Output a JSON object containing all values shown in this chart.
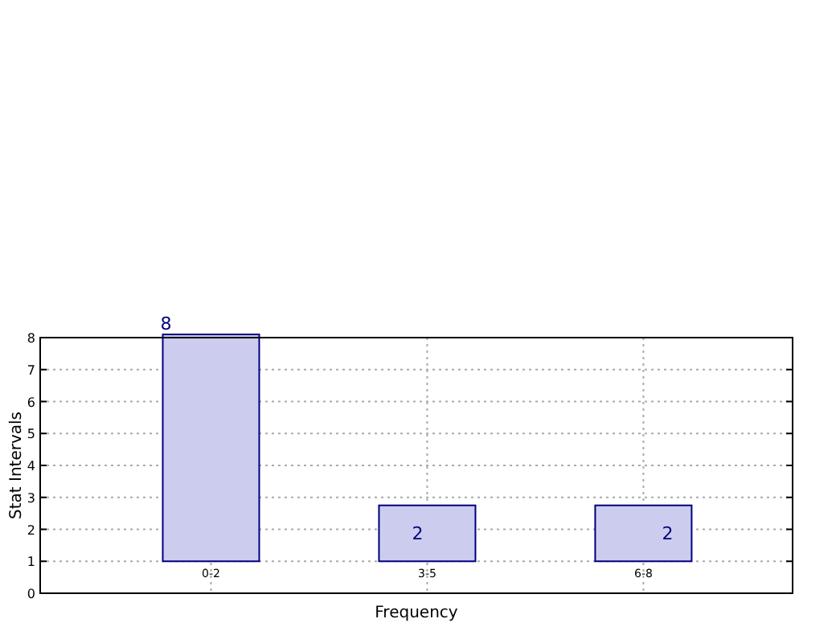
{
  "chart_data": {
    "type": "bar",
    "xlabel": "Frequency",
    "ylabel": "Stat Intervals",
    "categories": [
      "0-2",
      "3-5",
      "6-8"
    ],
    "values": [
      7.1,
      1.75,
      1.75
    ],
    "base": [
      1,
      1,
      1
    ],
    "value_labels": [
      "8",
      "2",
      "2"
    ],
    "color": "#ccccee",
    "ylim": [
      0,
      8
    ],
    "yticks": [
      0,
      1,
      2,
      3,
      4,
      5,
      6,
      7,
      8
    ],
    "grid": true
  }
}
